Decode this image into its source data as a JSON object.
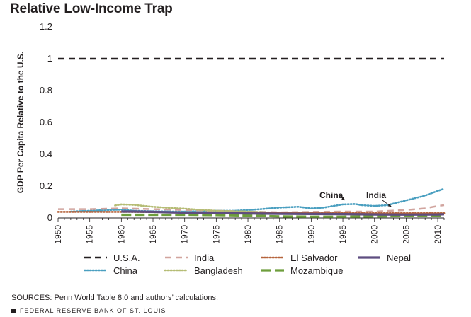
{
  "title": "Relative Low-Income Trap",
  "sources": "SOURCES: Penn World Table 8.0 and authors’ calculations.",
  "footer": "FEDERAL RESERVE BANK OF ST. LOUIS",
  "chart_data": {
    "type": "line",
    "title": "Relative Low-Income Trap",
    "xlabel": "",
    "ylabel": "GDP Per Capita Relative to the U.S.",
    "xlim": [
      1950,
      2011
    ],
    "ylim": [
      0,
      1.2
    ],
    "xticks": [
      "1950",
      "1955",
      "1960",
      "1965",
      "1970",
      "1975",
      "1980",
      "1985",
      "1990",
      "1995",
      "2000",
      "2005",
      "2010"
    ],
    "yticks": [
      "0",
      "0.2",
      "0.4",
      "0.6",
      "0.8",
      "1",
      "1.2"
    ],
    "grid": false,
    "legend_position": "bottom",
    "annotations": [
      {
        "text": "China",
        "x": 1996,
        "y": 0.085
      },
      {
        "text": "India",
        "x": 2002,
        "y": 0.052
      }
    ],
    "series": [
      {
        "name": "U.S.A.",
        "color": "#231f20",
        "style": "dashed",
        "x": [
          1950,
          2011
        ],
        "y": [
          1,
          1
        ]
      },
      {
        "name": "China",
        "color": "#4a9fc0",
        "style": "dotted",
        "x": [
          1952,
          1955,
          1958,
          1960,
          1962,
          1965,
          1968,
          1970,
          1972,
          1975,
          1978,
          1980,
          1982,
          1985,
          1988,
          1990,
          1992,
          1995,
          1997,
          1998,
          2000,
          2002,
          2004,
          2006,
          2008,
          2010,
          2011
        ],
        "y": [
          0.04,
          0.045,
          0.05,
          0.052,
          0.045,
          0.042,
          0.04,
          0.04,
          0.042,
          0.045,
          0.045,
          0.05,
          0.055,
          0.065,
          0.07,
          0.06,
          0.065,
          0.085,
          0.087,
          0.08,
          0.075,
          0.08,
          0.1,
          0.12,
          0.14,
          0.17,
          0.183
        ]
      },
      {
        "name": "India",
        "color": "#d1a49e",
        "style": "dashed",
        "x": [
          1950,
          1955,
          1960,
          1965,
          1970,
          1975,
          1980,
          1985,
          1990,
          1995,
          2000,
          2005,
          2008,
          2010,
          2011
        ],
        "y": [
          0.055,
          0.055,
          0.06,
          0.055,
          0.05,
          0.045,
          0.04,
          0.035,
          0.038,
          0.04,
          0.04,
          0.05,
          0.06,
          0.075,
          0.08
        ]
      },
      {
        "name": "Bangladesh",
        "color": "#b5bc74",
        "style": "dotted",
        "x": [
          1959,
          1960,
          1962,
          1965,
          1968,
          1970,
          1972,
          1975,
          1980,
          1985,
          1990,
          1995,
          2000,
          2005,
          2011
        ],
        "y": [
          0.078,
          0.085,
          0.082,
          0.07,
          0.062,
          0.058,
          0.052,
          0.045,
          0.04,
          0.032,
          0.03,
          0.03,
          0.028,
          0.028,
          0.03
        ]
      },
      {
        "name": "El Salvador",
        "color": "#b5633b",
        "style": "dotted",
        "x": [
          1950,
          1960,
          1970,
          1980,
          1990,
          2000,
          2011
        ],
        "y": [
          0.038,
          0.038,
          0.035,
          0.034,
          0.032,
          0.03,
          0.03
        ]
      },
      {
        "name": "Mozambique",
        "color": "#6e9e3c",
        "style": "longdash",
        "x": [
          1960,
          1965,
          1970,
          1975,
          1980,
          1985,
          1990,
          1995,
          2000,
          2005,
          2011
        ],
        "y": [
          0.02,
          0.02,
          0.02,
          0.018,
          0.015,
          0.01,
          0.008,
          0.008,
          0.01,
          0.012,
          0.015
        ]
      },
      {
        "name": "Nepal",
        "color": "#5e4d80",
        "style": "solid",
        "x": [
          1960,
          1962,
          1965,
          1968,
          1970,
          1975,
          1980,
          1985,
          1990,
          1995,
          2000,
          2005,
          2010,
          2011
        ],
        "y": [
          0.04,
          0.04,
          0.038,
          0.035,
          0.033,
          0.03,
          0.028,
          0.026,
          0.025,
          0.024,
          0.022,
          0.021,
          0.022,
          0.023
        ]
      }
    ],
    "legend_order": [
      "U.S.A.",
      "India",
      "El Salvador",
      "Nepal",
      "China",
      "Bangladesh",
      "Mozambique"
    ]
  }
}
